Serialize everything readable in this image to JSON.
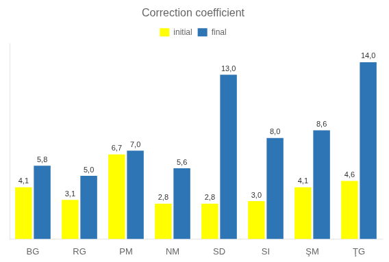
{
  "chart_data": {
    "type": "bar",
    "title": "Correction coefficient",
    "categories": [
      "BG",
      "RG",
      "PM",
      "NM",
      "SD",
      "SI",
      "ŞM",
      "ŢG"
    ],
    "series": [
      {
        "name": "initial",
        "color": "#ffff00",
        "values": [
          4.1,
          3.1,
          6.7,
          2.8,
          2.8,
          3.0,
          4.1,
          4.6
        ],
        "value_labels": [
          "4,1",
          "3,1",
          "6,7",
          "2,8",
          "2,8",
          "3,0",
          "4,1",
          "4,6"
        ]
      },
      {
        "name": "final",
        "color": "#2e75b6",
        "values": [
          5.8,
          5.0,
          7.0,
          5.6,
          13.0,
          8.0,
          8.6,
          14.0
        ],
        "value_labels": [
          "5,8",
          "5,0",
          "7,0",
          "5,6",
          "13,0",
          "8,0",
          "8,6",
          "14,0"
        ]
      }
    ],
    "ylim": [
      0,
      15.5
    ],
    "grid": false,
    "legend": "top",
    "data_labels": true,
    "tick_labels": "x"
  }
}
